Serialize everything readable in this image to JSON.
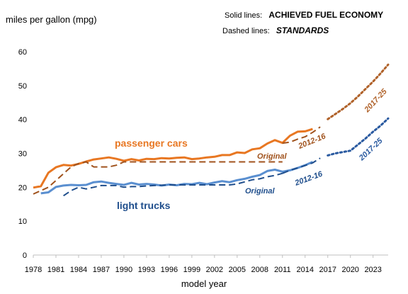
{
  "chart_data": {
    "type": "line",
    "ylabel": "miles per gallon (mpg)",
    "xlabel": "model year",
    "ylim": [
      0,
      60
    ],
    "xlim": [
      1978,
      2025
    ],
    "yticks": [
      "0",
      "10",
      "20",
      "30",
      "40",
      "50",
      "60"
    ],
    "xticks": [
      "1978",
      "1981",
      "1984",
      "1987",
      "1990",
      "1993",
      "1996",
      "1999",
      "2002",
      "2005",
      "2008",
      "2011",
      "2014",
      "2017",
      "2020",
      "2023"
    ],
    "legend": {
      "solid_prefix": "Solid lines:",
      "solid_text": "ACHIEVED FUEL ECONOMY",
      "dashed_prefix": "Dashed lines:",
      "dashed_text": "STANDARDS"
    },
    "annotations": {
      "cars": "passenger cars",
      "trucks": "light trucks",
      "original_cars": "Original",
      "original_trucks": "Original",
      "cars_2012": "2012-16",
      "trucks_2012": "2012-16",
      "cars_2017": "2017-25",
      "trucks_2017": "2017-25"
    },
    "colors": {
      "cars": "#e87722",
      "cars_std": "#a0521c",
      "cars_future": "#b0622a",
      "trucks": "#5a8fd0",
      "trucks_std": "#1f4e8c",
      "trucks_future": "#2a5aa0",
      "axis": "#bfbfbf"
    },
    "series": [
      {
        "name": "passenger cars",
        "style": "solid",
        "color_key": "cars",
        "points": [
          [
            1978,
            19.9
          ],
          [
            1979,
            20.3
          ],
          [
            1980,
            24.3
          ],
          [
            1981,
            25.9
          ],
          [
            1982,
            26.6
          ],
          [
            1983,
            26.4
          ],
          [
            1984,
            26.9
          ],
          [
            1985,
            27.6
          ],
          [
            1986,
            28.2
          ],
          [
            1987,
            28.5
          ],
          [
            1988,
            28.8
          ],
          [
            1989,
            28.4
          ],
          [
            1990,
            27.8
          ],
          [
            1991,
            28.3
          ],
          [
            1992,
            27.9
          ],
          [
            1993,
            28.4
          ],
          [
            1994,
            28.3
          ],
          [
            1995,
            28.6
          ],
          [
            1996,
            28.5
          ],
          [
            1997,
            28.7
          ],
          [
            1998,
            28.8
          ],
          [
            1999,
            28.3
          ],
          [
            2000,
            28.5
          ],
          [
            2001,
            28.8
          ],
          [
            2002,
            29.0
          ],
          [
            2003,
            29.5
          ],
          [
            2004,
            29.5
          ],
          [
            2005,
            30.3
          ],
          [
            2006,
            30.1
          ],
          [
            2007,
            31.2
          ],
          [
            2008,
            31.5
          ],
          [
            2009,
            32.9
          ],
          [
            2010,
            33.9
          ],
          [
            2011,
            33.1
          ],
          [
            2012,
            35.2
          ],
          [
            2013,
            36.4
          ],
          [
            2014,
            36.5
          ],
          [
            2015,
            37.2
          ]
        ]
      },
      {
        "name": "Original",
        "style": "dashed",
        "color_key": "cars_std",
        "points": [
          [
            1978,
            18.0
          ],
          [
            1979,
            19.0
          ],
          [
            1980,
            20.0
          ],
          [
            1981,
            22.0
          ],
          [
            1982,
            24.0
          ],
          [
            1983,
            26.0
          ],
          [
            1984,
            27.0
          ],
          [
            1985,
            27.5
          ],
          [
            1986,
            26.0
          ],
          [
            1987,
            26.0
          ],
          [
            1988,
            26.0
          ],
          [
            1989,
            26.5
          ],
          [
            1990,
            27.5
          ],
          [
            2011,
            27.5
          ]
        ]
      },
      {
        "name": "2012-16",
        "style": "dashed",
        "color_key": "cars_std",
        "points": [
          [
            2011,
            33.0
          ],
          [
            2012,
            33.3
          ],
          [
            2013,
            34.2
          ],
          [
            2014,
            34.9
          ],
          [
            2015,
            36.2
          ],
          [
            2016,
            37.8
          ]
        ]
      },
      {
        "name": "2017-25",
        "style": "dotted",
        "color_key": "cars_future",
        "points": [
          [
            2017,
            40.1
          ],
          [
            2018,
            41.6
          ],
          [
            2019,
            43.1
          ],
          [
            2020,
            44.8
          ],
          [
            2021,
            46.8
          ],
          [
            2022,
            49.0
          ],
          [
            2023,
            51.2
          ],
          [
            2024,
            53.6
          ],
          [
            2025,
            56.2
          ]
        ]
      },
      {
        "name": "light trucks",
        "style": "solid",
        "color_key": "trucks",
        "points": [
          [
            1979,
            18.2
          ],
          [
            1980,
            18.5
          ],
          [
            1981,
            20.1
          ],
          [
            1982,
            20.5
          ],
          [
            1983,
            20.7
          ],
          [
            1984,
            20.6
          ],
          [
            1985,
            20.7
          ],
          [
            1986,
            21.5
          ],
          [
            1987,
            21.7
          ],
          [
            1988,
            21.3
          ],
          [
            1989,
            21.0
          ],
          [
            1990,
            20.7
          ],
          [
            1991,
            21.3
          ],
          [
            1992,
            20.8
          ],
          [
            1993,
            21.0
          ],
          [
            1994,
            20.8
          ],
          [
            1995,
            20.5
          ],
          [
            1996,
            20.8
          ],
          [
            1997,
            20.6
          ],
          [
            1998,
            21.0
          ],
          [
            1999,
            20.9
          ],
          [
            2000,
            21.3
          ],
          [
            2001,
            20.9
          ],
          [
            2002,
            21.4
          ],
          [
            2003,
            21.8
          ],
          [
            2004,
            21.5
          ],
          [
            2005,
            22.1
          ],
          [
            2006,
            22.5
          ],
          [
            2007,
            23.1
          ],
          [
            2008,
            23.6
          ],
          [
            2009,
            24.8
          ],
          [
            2010,
            25.2
          ],
          [
            2011,
            24.6
          ],
          [
            2012,
            25.0
          ],
          [
            2013,
            25.7
          ],
          [
            2014,
            26.5
          ],
          [
            2015,
            27.5
          ]
        ]
      },
      {
        "name": "Original",
        "style": "dashed",
        "color_key": "trucks_std",
        "points": [
          [
            1982,
            17.5
          ],
          [
            1983,
            19.0
          ],
          [
            1984,
            20.0
          ],
          [
            1985,
            19.5
          ],
          [
            1986,
            20.0
          ],
          [
            1987,
            20.5
          ],
          [
            1988,
            20.5
          ],
          [
            1989,
            20.5
          ],
          [
            1990,
            20.0
          ],
          [
            1991,
            20.2
          ],
          [
            1992,
            20.2
          ],
          [
            1993,
            20.4
          ],
          [
            1994,
            20.5
          ],
          [
            1995,
            20.6
          ],
          [
            1996,
            20.7
          ],
          [
            1997,
            20.7
          ],
          [
            1998,
            20.7
          ],
          [
            1999,
            20.7
          ],
          [
            2000,
            20.7
          ],
          [
            2001,
            20.7
          ],
          [
            2002,
            20.7
          ],
          [
            2003,
            20.7
          ],
          [
            2004,
            20.7
          ],
          [
            2005,
            21.0
          ],
          [
            2006,
            21.6
          ],
          [
            2007,
            22.2
          ],
          [
            2008,
            22.5
          ],
          [
            2009,
            23.1
          ],
          [
            2010,
            23.5
          ],
          [
            2011,
            24.1
          ]
        ]
      },
      {
        "name": "2012-16",
        "style": "dashed",
        "color_key": "trucks_std",
        "points": [
          [
            2011,
            24.1
          ],
          [
            2012,
            25.0
          ],
          [
            2013,
            25.7
          ],
          [
            2014,
            26.4
          ],
          [
            2015,
            27.2
          ],
          [
            2016,
            28.6
          ]
        ]
      },
      {
        "name": "2017-25",
        "style": "dotted",
        "color_key": "trucks_future",
        "points": [
          [
            2017,
            29.4
          ],
          [
            2018,
            30.0
          ],
          [
            2019,
            30.4
          ],
          [
            2020,
            30.8
          ],
          [
            2021,
            32.6
          ],
          [
            2022,
            34.4
          ],
          [
            2023,
            36.4
          ],
          [
            2024,
            38.2
          ],
          [
            2025,
            40.3
          ]
        ]
      }
    ]
  }
}
